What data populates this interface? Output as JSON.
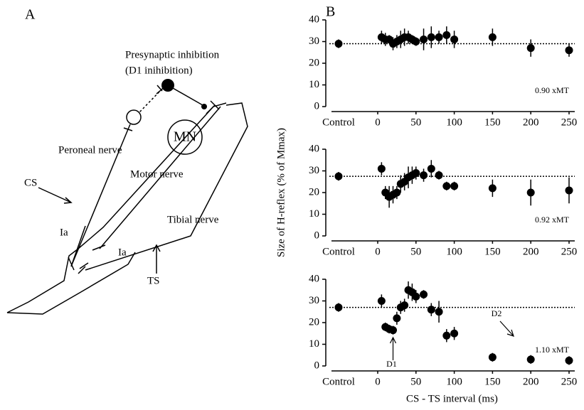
{
  "diagram": {
    "panel": "A",
    "title_line1": "Presynaptic inhibition",
    "title_line2": "(D1 inihibition)",
    "mn": "MN",
    "peroneal": "Peroneal nerve",
    "motor": "Motor nerve",
    "tibial": "Tibial nerve",
    "cs": "CS",
    "ia_1": "Ia",
    "ia_2": "Ia",
    "ts": "TS"
  },
  "panel_b": "B",
  "chart_data": [
    {
      "type": "scatter",
      "annotation": "0.90 xMT",
      "control": {
        "label": "Control",
        "value": 29,
        "error": 2
      },
      "x": [
        5,
        10,
        15,
        20,
        25,
        30,
        35,
        40,
        45,
        50,
        60,
        70,
        80,
        90,
        100,
        150,
        200,
        250
      ],
      "values": [
        32,
        31,
        31,
        29,
        30,
        31,
        32,
        32,
        31,
        30,
        31,
        32,
        32,
        33,
        31,
        32,
        27,
        26
      ],
      "errors": [
        3,
        3,
        2,
        3,
        3,
        4,
        4,
        3,
        2,
        2,
        5,
        5,
        3,
        4,
        4,
        4,
        4,
        3
      ],
      "xlim": [
        0,
        250
      ],
      "xticks": [
        0,
        50,
        100,
        150,
        200,
        250
      ],
      "ylim": [
        0,
        40
      ],
      "yticks": [
        0,
        10,
        20,
        30,
        40
      ],
      "color": "#000000"
    },
    {
      "type": "scatter",
      "annotation": "0.92 xMT",
      "y_label": "Size of H-reflex (% of Mmax)",
      "control": {
        "label": "Control",
        "value": 27.5,
        "error": 2
      },
      "x": [
        5,
        10,
        15,
        20,
        25,
        30,
        35,
        40,
        45,
        50,
        60,
        70,
        80,
        90,
        100,
        150,
        200,
        250
      ],
      "values": [
        31,
        20,
        18,
        19,
        20,
        24,
        25,
        27,
        28,
        29,
        28,
        31,
        28,
        23,
        23,
        22,
        20,
        21
      ],
      "errors": [
        3,
        3,
        5,
        4,
        3,
        4,
        4,
        5,
        4,
        3,
        3,
        4,
        2,
        2,
        2,
        4,
        6,
        6
      ],
      "xlim": [
        0,
        250
      ],
      "xticks": [
        0,
        50,
        100,
        150,
        200,
        250
      ],
      "ylim": [
        0,
        40
      ],
      "yticks": [
        0,
        10,
        20,
        30,
        40
      ],
      "color": "#000000"
    },
    {
      "type": "scatter",
      "annotation": "1.10 xMT",
      "x_label": "CS - TS interval (ms)",
      "d1": "D1",
      "d2": "D2",
      "control": {
        "label": "Control",
        "value": 27,
        "error": 2
      },
      "x": [
        5,
        10,
        15,
        20,
        25,
        30,
        35,
        40,
        45,
        50,
        60,
        70,
        80,
        90,
        100,
        150,
        200,
        250
      ],
      "values": [
        30,
        18,
        17,
        16.5,
        22,
        27,
        28,
        35,
        34,
        32,
        33,
        26,
        25,
        14,
        15,
        4,
        3,
        2.5
      ],
      "errors": [
        3,
        2,
        2,
        2,
        3,
        3,
        3,
        4,
        4,
        3,
        2,
        3,
        5,
        3,
        3,
        2,
        2,
        2
      ],
      "xlim": [
        0,
        250
      ],
      "xticks": [
        0,
        50,
        100,
        150,
        200,
        250
      ],
      "ylim": [
        0,
        40
      ],
      "yticks": [
        0,
        10,
        20,
        30,
        40
      ],
      "color": "#000000"
    }
  ]
}
